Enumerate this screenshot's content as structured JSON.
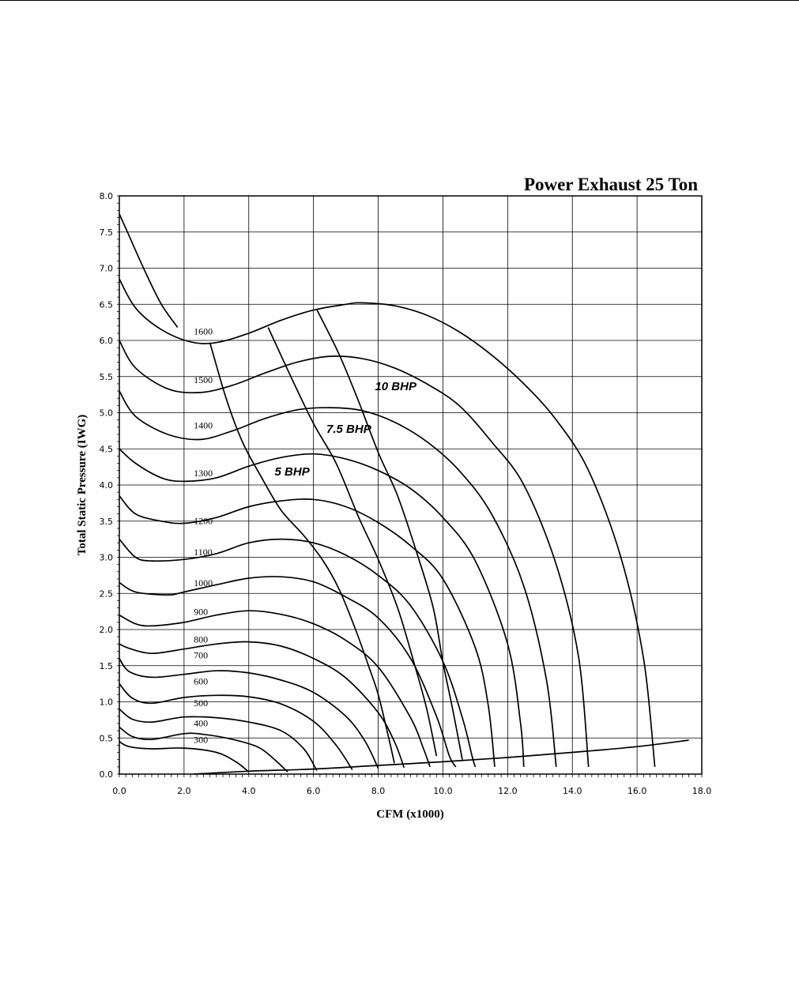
{
  "chart_data": {
    "type": "line",
    "title": "Power Exhaust 25 Ton",
    "xlabel": "CFM (x1000)",
    "ylabel": "Total Static Pressure (IWG)",
    "xlim": [
      0,
      18
    ],
    "ylim": [
      0,
      8
    ],
    "grid": true,
    "x_ticks": [
      "0.0",
      "2.0",
      "4.0",
      "6.0",
      "8.0",
      "10.0",
      "12.0",
      "14.0",
      "16.0",
      "18.0"
    ],
    "y_ticks": [
      "0.0",
      "0.5",
      "1.0",
      "1.5",
      "2.0",
      "2.5",
      "3.0",
      "3.5",
      "4.0",
      "4.5",
      "5.0",
      "5.5",
      "6.0",
      "6.5",
      "7.0",
      "7.5",
      "8.0"
    ],
    "rpm_series": [
      {
        "name": "300",
        "label_at": [
          2.3,
          0.43
        ],
        "points": [
          [
            0,
            0.45
          ],
          [
            0.3,
            0.38
          ],
          [
            1,
            0.35
          ],
          [
            2,
            0.36
          ],
          [
            3,
            0.3
          ],
          [
            3.6,
            0.17
          ],
          [
            4.0,
            0.03
          ]
        ]
      },
      {
        "name": "400",
        "label_at": [
          2.3,
          0.66
        ],
        "points": [
          [
            0,
            0.65
          ],
          [
            0.4,
            0.52
          ],
          [
            1,
            0.48
          ],
          [
            2,
            0.56
          ],
          [
            2.6,
            0.55
          ],
          [
            3.5,
            0.48
          ],
          [
            4.3,
            0.37
          ],
          [
            4.8,
            0.2
          ],
          [
            5.2,
            0.03
          ]
        ]
      },
      {
        "name": "500",
        "label_at": [
          2.3,
          0.94
        ],
        "points": [
          [
            0,
            0.9
          ],
          [
            0.4,
            0.76
          ],
          [
            1,
            0.72
          ],
          [
            2,
            0.79
          ],
          [
            3,
            0.78
          ],
          [
            4,
            0.72
          ],
          [
            5,
            0.6
          ],
          [
            5.7,
            0.35
          ],
          [
            6.1,
            0.05
          ]
        ]
      },
      {
        "name": "600",
        "label_at": [
          2.3,
          1.24
        ],
        "points": [
          [
            0,
            1.25
          ],
          [
            0.4,
            1.05
          ],
          [
            1,
            0.98
          ],
          [
            2,
            1.06
          ],
          [
            3,
            1.09
          ],
          [
            4,
            1.07
          ],
          [
            5,
            0.97
          ],
          [
            6,
            0.73
          ],
          [
            6.7,
            0.4
          ],
          [
            7.2,
            0.06
          ]
        ]
      },
      {
        "name": "700",
        "label_at": [
          2.3,
          1.6
        ],
        "points": [
          [
            0,
            1.6
          ],
          [
            0.3,
            1.42
          ],
          [
            1,
            1.34
          ],
          [
            2,
            1.38
          ],
          [
            3,
            1.43
          ],
          [
            4,
            1.4
          ],
          [
            5,
            1.3
          ],
          [
            6,
            1.13
          ],
          [
            7,
            0.8
          ],
          [
            7.6,
            0.45
          ],
          [
            8.0,
            0.08
          ]
        ]
      },
      {
        "name": "800",
        "label_at": [
          2.3,
          1.82
        ],
        "points": [
          [
            0,
            1.8
          ],
          [
            0.3,
            1.74
          ],
          [
            1,
            1.67
          ],
          [
            2,
            1.73
          ],
          [
            3,
            1.8
          ],
          [
            4,
            1.83
          ],
          [
            5,
            1.77
          ],
          [
            6,
            1.6
          ],
          [
            7,
            1.33
          ],
          [
            8,
            0.85
          ],
          [
            8.5,
            0.45
          ],
          [
            8.8,
            0.09
          ]
        ]
      },
      {
        "name": "900",
        "label_at": [
          2.3,
          2.2
        ],
        "points": [
          [
            0,
            2.2
          ],
          [
            0.5,
            2.08
          ],
          [
            1,
            2.05
          ],
          [
            2,
            2.1
          ],
          [
            3,
            2.2
          ],
          [
            4,
            2.26
          ],
          [
            5,
            2.21
          ],
          [
            6,
            2.08
          ],
          [
            7,
            1.85
          ],
          [
            8,
            1.48
          ],
          [
            9,
            0.78
          ],
          [
            9.4,
            0.35
          ],
          [
            9.6,
            0.1
          ]
        ]
      },
      {
        "name": "1000",
        "label_at": [
          2.3,
          2.6
        ],
        "points": [
          [
            0,
            2.65
          ],
          [
            0.5,
            2.52
          ],
          [
            1.5,
            2.48
          ],
          [
            2,
            2.52
          ],
          [
            3,
            2.62
          ],
          [
            4,
            2.71
          ],
          [
            5,
            2.73
          ],
          [
            6,
            2.66
          ],
          [
            7,
            2.45
          ],
          [
            8,
            2.16
          ],
          [
            9,
            1.6
          ],
          [
            9.8,
            0.8
          ],
          [
            10.2,
            0.25
          ],
          [
            10.4,
            0.1
          ]
        ]
      },
      {
        "name": "1100",
        "label_at": [
          2.3,
          3.03
        ],
        "points": [
          [
            0,
            3.25
          ],
          [
            0.5,
            3.0
          ],
          [
            1,
            2.95
          ],
          [
            2,
            2.97
          ],
          [
            3,
            3.05
          ],
          [
            4,
            3.2
          ],
          [
            5,
            3.25
          ],
          [
            6,
            3.2
          ],
          [
            7,
            3.03
          ],
          [
            8,
            2.75
          ],
          [
            9,
            2.33
          ],
          [
            10,
            1.56
          ],
          [
            10.6,
            0.78
          ],
          [
            10.9,
            0.25
          ],
          [
            11.0,
            0.1
          ]
        ]
      },
      {
        "name": "1200",
        "label_at": [
          2.3,
          3.46
        ],
        "points": [
          [
            0,
            3.85
          ],
          [
            0.5,
            3.6
          ],
          [
            1.3,
            3.5
          ],
          [
            2,
            3.47
          ],
          [
            3,
            3.55
          ],
          [
            4,
            3.7
          ],
          [
            5,
            3.78
          ],
          [
            6,
            3.8
          ],
          [
            7,
            3.7
          ],
          [
            8,
            3.48
          ],
          [
            9,
            3.16
          ],
          [
            10,
            2.7
          ],
          [
            11,
            1.75
          ],
          [
            11.4,
            0.95
          ],
          [
            11.6,
            0.1
          ]
        ]
      },
      {
        "name": "1300",
        "label_at": [
          2.3,
          4.12
        ],
        "points": [
          [
            0,
            4.5
          ],
          [
            0.5,
            4.3
          ],
          [
            1.3,
            4.1
          ],
          [
            2,
            4.05
          ],
          [
            3,
            4.1
          ],
          [
            4,
            4.26
          ],
          [
            5,
            4.38
          ],
          [
            6,
            4.43
          ],
          [
            7,
            4.36
          ],
          [
            8,
            4.2
          ],
          [
            9,
            3.95
          ],
          [
            10,
            3.55
          ],
          [
            11,
            2.95
          ],
          [
            12,
            1.8
          ],
          [
            12.4,
            0.7
          ],
          [
            12.5,
            0.1
          ]
        ]
      },
      {
        "name": "1400",
        "label_at": [
          2.3,
          4.78
        ],
        "points": [
          [
            0,
            5.3
          ],
          [
            0.5,
            4.95
          ],
          [
            1.5,
            4.7
          ],
          [
            2.5,
            4.63
          ],
          [
            3.5,
            4.75
          ],
          [
            4.5,
            4.92
          ],
          [
            5.5,
            5.04
          ],
          [
            6.5,
            5.07
          ],
          [
            7.5,
            5.03
          ],
          [
            8.5,
            4.87
          ],
          [
            9.5,
            4.6
          ],
          [
            10.5,
            4.2
          ],
          [
            11.5,
            3.6
          ],
          [
            12.5,
            2.6
          ],
          [
            13.2,
            1.3
          ],
          [
            13.5,
            0.1
          ]
        ]
      },
      {
        "name": "1500",
        "label_at": [
          2.3,
          5.41
        ],
        "points": [
          [
            0,
            6.0
          ],
          [
            0.5,
            5.62
          ],
          [
            1.5,
            5.33
          ],
          [
            2.5,
            5.28
          ],
          [
            3.5,
            5.38
          ],
          [
            4.5,
            5.55
          ],
          [
            5.5,
            5.7
          ],
          [
            6.5,
            5.78
          ],
          [
            7.5,
            5.75
          ],
          [
            8.5,
            5.62
          ],
          [
            9.5,
            5.4
          ],
          [
            10.5,
            5.1
          ],
          [
            11.5,
            4.6
          ],
          [
            12.5,
            4.0
          ],
          [
            13.5,
            2.9
          ],
          [
            14.2,
            1.6
          ],
          [
            14.5,
            0.1
          ]
        ]
      },
      {
        "name": "1600",
        "label_at": [
          2.3,
          6.08
        ],
        "points": [
          [
            0,
            6.85
          ],
          [
            0.5,
            6.45
          ],
          [
            1.3,
            6.15
          ],
          [
            2.2,
            5.98
          ],
          [
            3,
            5.97
          ],
          [
            4,
            6.1
          ],
          [
            5,
            6.28
          ],
          [
            6,
            6.42
          ],
          [
            7,
            6.5
          ],
          [
            7.5,
            6.52
          ],
          [
            8.5,
            6.48
          ],
          [
            9.5,
            6.35
          ],
          [
            10.5,
            6.12
          ],
          [
            11.5,
            5.8
          ],
          [
            12.5,
            5.4
          ],
          [
            13.5,
            4.9
          ],
          [
            14.5,
            4.2
          ],
          [
            15.5,
            3.0
          ],
          [
            16.2,
            1.6
          ],
          [
            16.55,
            0.1
          ]
        ]
      },
      {
        "name": "",
        "label_at": null,
        "points": [
          [
            0,
            7.75
          ],
          [
            0.3,
            7.45
          ],
          [
            0.8,
            6.95
          ],
          [
            1.3,
            6.5
          ],
          [
            1.8,
            6.18
          ]
        ]
      }
    ],
    "bhp_series": [
      {
        "name": "5 BHP",
        "label_at": [
          4.8,
          4.13
        ],
        "points": [
          [
            2.8,
            5.97
          ],
          [
            3.3,
            5.2
          ],
          [
            3.8,
            4.6
          ],
          [
            4.4,
            4.1
          ],
          [
            5.0,
            3.65
          ],
          [
            5.7,
            3.3
          ],
          [
            6.3,
            2.95
          ],
          [
            6.8,
            2.55
          ],
          [
            7.3,
            2.0
          ],
          [
            7.7,
            1.5
          ],
          [
            8.0,
            1.1
          ],
          [
            8.3,
            0.55
          ],
          [
            8.5,
            0.15
          ]
        ]
      },
      {
        "name": "7.5 BHP",
        "label_at": [
          6.4,
          4.72
        ],
        "points": [
          [
            4.6,
            6.18
          ],
          [
            5.3,
            5.5
          ],
          [
            6.0,
            4.85
          ],
          [
            6.7,
            4.3
          ],
          [
            7.4,
            3.55
          ],
          [
            8.0,
            2.97
          ],
          [
            8.6,
            2.3
          ],
          [
            9.1,
            1.55
          ],
          [
            9.5,
            0.9
          ],
          [
            9.8,
            0.25
          ]
        ]
      },
      {
        "name": "10 BHP",
        "label_at": [
          7.9,
          5.31
        ],
        "points": [
          [
            6.1,
            6.43
          ],
          [
            6.8,
            5.8
          ],
          [
            7.4,
            5.15
          ],
          [
            8.0,
            4.45
          ],
          [
            8.6,
            3.85
          ],
          [
            9.2,
            3.05
          ],
          [
            9.7,
            2.3
          ],
          [
            10.0,
            1.55
          ],
          [
            10.3,
            0.9
          ],
          [
            10.6,
            0.2
          ]
        ]
      }
    ],
    "system_line": {
      "points": [
        [
          2.3,
          0.0
        ],
        [
          4,
          0.04
        ],
        [
          6,
          0.07
        ],
        [
          8,
          0.12
        ],
        [
          10,
          0.17
        ],
        [
          12,
          0.23
        ],
        [
          14,
          0.3
        ],
        [
          16,
          0.38
        ],
        [
          17.6,
          0.47
        ]
      ]
    }
  }
}
